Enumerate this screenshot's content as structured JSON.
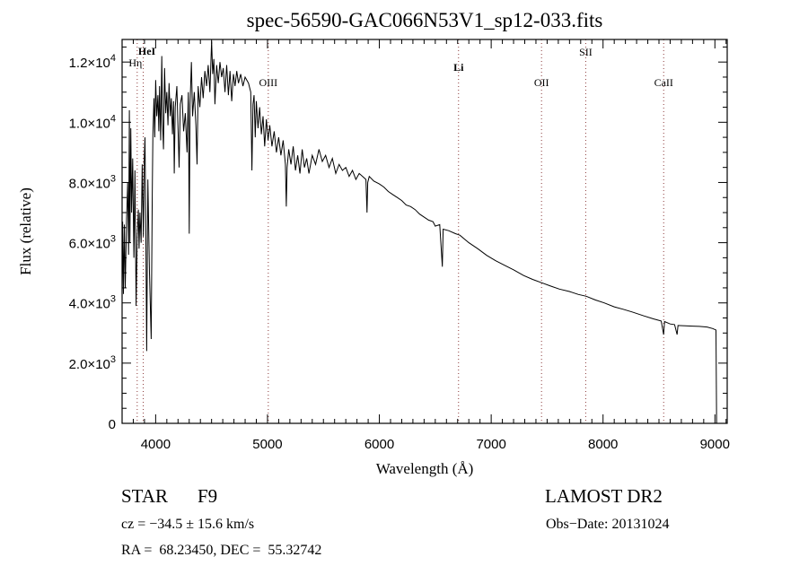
{
  "chart_data": {
    "type": "line",
    "title": "spec-56590-GAC066N53V1_sp12-033.fits",
    "xlabel": "Wavelength (Å)",
    "ylabel": "Flux (relative)",
    "xlim": [
      3700,
      9110
    ],
    "ylim": [
      0,
      12750
    ],
    "grid": false,
    "x_ticks": [
      {
        "value": 4000,
        "label": "4000"
      },
      {
        "value": 5000,
        "label": "5000"
      },
      {
        "value": 6000,
        "label": "6000"
      },
      {
        "value": 7000,
        "label": "7000"
      },
      {
        "value": 8000,
        "label": "8000"
      },
      {
        "value": 9000,
        "label": "9000"
      }
    ],
    "y_ticks": [
      {
        "value": 0,
        "mantissa": "0",
        "exp": ""
      },
      {
        "value": 2000,
        "mantissa": "2.0×10",
        "exp": "3"
      },
      {
        "value": 4000,
        "mantissa": "4.0×10",
        "exp": "3"
      },
      {
        "value": 6000,
        "mantissa": "6.0×10",
        "exp": "3"
      },
      {
        "value": 8000,
        "mantissa": "8.0×10",
        "exp": "3"
      },
      {
        "value": 10000,
        "mantissa": "1.0×10",
        "exp": "4"
      },
      {
        "value": 12000,
        "mantissa": "1.2×10",
        "exp": "4"
      }
    ],
    "line_markers": [
      {
        "name": "Hη",
        "wavelength": 3835
      },
      {
        "name": "HeI",
        "wavelength": 3889
      },
      {
        "name": "OIII",
        "wavelength": 5007
      },
      {
        "name": "Li",
        "wavelength": 6708
      },
      {
        "name": "OII",
        "wavelength": 7450
      },
      {
        "name": "SII",
        "wavelength": 7845
      },
      {
        "name": "CaII",
        "wavelength": 8542
      }
    ],
    "series": [
      {
        "name": "spectrum",
        "color": "#000000",
        "points": [
          [
            3700,
            4200
          ],
          [
            3705,
            6700
          ],
          [
            3712,
            4300
          ],
          [
            3720,
            6600
          ],
          [
            3728,
            4500
          ],
          [
            3740,
            6800
          ],
          [
            3750,
            8000
          ],
          [
            3758,
            5600
          ],
          [
            3765,
            10400
          ],
          [
            3770,
            6000
          ],
          [
            3778,
            9800
          ],
          [
            3785,
            7000
          ],
          [
            3795,
            8800
          ],
          [
            3805,
            5500
          ],
          [
            3815,
            8400
          ],
          [
            3825,
            3900
          ],
          [
            3835,
            6200
          ],
          [
            3845,
            7100
          ],
          [
            3852,
            5800
          ],
          [
            3860,
            7000
          ],
          [
            3870,
            6000
          ],
          [
            3880,
            8600
          ],
          [
            3890,
            6200
          ],
          [
            3898,
            8800
          ],
          [
            3905,
            9500
          ],
          [
            3912,
            6500
          ],
          [
            3920,
            2400
          ],
          [
            3930,
            8100
          ],
          [
            3945,
            5000
          ],
          [
            3960,
            2800
          ],
          [
            3970,
            7600
          ],
          [
            3975,
            9600
          ],
          [
            3985,
            10800
          ],
          [
            3992,
            9500
          ],
          [
            4000,
            11400
          ],
          [
            4010,
            10200
          ],
          [
            4020,
            10900
          ],
          [
            4028,
            9700
          ],
          [
            4035,
            11200
          ],
          [
            4045,
            9400
          ],
          [
            4055,
            12200
          ],
          [
            4062,
            10000
          ],
          [
            4070,
            9100
          ],
          [
            4080,
            11800
          ],
          [
            4090,
            10300
          ],
          [
            4100,
            11000
          ],
          [
            4110,
            9900
          ],
          [
            4120,
            11300
          ],
          [
            4130,
            10200
          ],
          [
            4140,
            10800
          ],
          [
            4150,
            9600
          ],
          [
            4160,
            10700
          ],
          [
            4166,
            8300
          ],
          [
            4175,
            10500
          ],
          [
            4190,
            11200
          ],
          [
            4200,
            9800
          ],
          [
            4210,
            8500
          ],
          [
            4220,
            10600
          ],
          [
            4235,
            10900
          ],
          [
            4250,
            9700
          ],
          [
            4265,
            10300
          ],
          [
            4280,
            9000
          ],
          [
            4292,
            11000
          ],
          [
            4300,
            6300
          ],
          [
            4308,
            10600
          ],
          [
            4320,
            12000
          ],
          [
            4330,
            10200
          ],
          [
            4345,
            11000
          ],
          [
            4360,
            9900
          ],
          [
            4370,
            8600
          ],
          [
            4380,
            11200
          ],
          [
            4395,
            10500
          ],
          [
            4410,
            11500
          ],
          [
            4425,
            10800
          ],
          [
            4440,
            11700
          ],
          [
            4455,
            11200
          ],
          [
            4470,
            11900
          ],
          [
            4485,
            11000
          ],
          [
            4500,
            12700
          ],
          [
            4510,
            11600
          ],
          [
            4520,
            12100
          ],
          [
            4530,
            10600
          ],
          [
            4545,
            11900
          ],
          [
            4560,
            11300
          ],
          [
            4575,
            12000
          ],
          [
            4590,
            11500
          ],
          [
            4605,
            11800
          ],
          [
            4620,
            11000
          ],
          [
            4635,
            11900
          ],
          [
            4650,
            10900
          ],
          [
            4665,
            11700
          ],
          [
            4680,
            10700
          ],
          [
            4695,
            11600
          ],
          [
            4710,
            11200
          ],
          [
            4725,
            11700
          ],
          [
            4740,
            11300
          ],
          [
            4760,
            11600
          ],
          [
            4780,
            11200
          ],
          [
            4800,
            11500
          ],
          [
            4830,
            11300
          ],
          [
            4850,
            11000
          ],
          [
            4861,
            8400
          ],
          [
            4870,
            10600
          ],
          [
            4880,
            10900
          ],
          [
            4890,
            9500
          ],
          [
            4900,
            10700
          ],
          [
            4915,
            9800
          ],
          [
            4930,
            10500
          ],
          [
            4945,
            9600
          ],
          [
            4960,
            10200
          ],
          [
            4975,
            9200
          ],
          [
            4990,
            10100
          ],
          [
            5005,
            9400
          ],
          [
            5020,
            9900
          ],
          [
            5040,
            9200
          ],
          [
            5060,
            9700
          ],
          [
            5080,
            9000
          ],
          [
            5100,
            9500
          ],
          [
            5120,
            8900
          ],
          [
            5140,
            9400
          ],
          [
            5160,
            8600
          ],
          [
            5168,
            7200
          ],
          [
            5175,
            8500
          ],
          [
            5190,
            9100
          ],
          [
            5210,
            8600
          ],
          [
            5230,
            9200
          ],
          [
            5250,
            8400
          ],
          [
            5270,
            8900
          ],
          [
            5290,
            8300
          ],
          [
            5310,
            9100
          ],
          [
            5330,
            8500
          ],
          [
            5350,
            8800
          ],
          [
            5370,
            8300
          ],
          [
            5400,
            8900
          ],
          [
            5430,
            8600
          ],
          [
            5460,
            9100
          ],
          [
            5490,
            8700
          ],
          [
            5520,
            8900
          ],
          [
            5550,
            8500
          ],
          [
            5580,
            8800
          ],
          [
            5610,
            8300
          ],
          [
            5640,
            8600
          ],
          [
            5670,
            8400
          ],
          [
            5700,
            8500
          ],
          [
            5730,
            8200
          ],
          [
            5760,
            8400
          ],
          [
            5790,
            8100
          ],
          [
            5820,
            8300
          ],
          [
            5850,
            8200
          ],
          [
            5880,
            8100
          ],
          [
            5890,
            7000
          ],
          [
            5896,
            8000
          ],
          [
            5910,
            8200
          ],
          [
            5950,
            8050
          ],
          [
            6000,
            7950
          ],
          [
            6040,
            7850
          ],
          [
            6080,
            7700
          ],
          [
            6120,
            7600
          ],
          [
            6160,
            7500
          ],
          [
            6200,
            7400
          ],
          [
            6240,
            7250
          ],
          [
            6280,
            7200
          ],
          [
            6320,
            7100
          ],
          [
            6360,
            6950
          ],
          [
            6400,
            6850
          ],
          [
            6440,
            6750
          ],
          [
            6480,
            6700
          ],
          [
            6500,
            6550
          ],
          [
            6540,
            6600
          ],
          [
            6563,
            5200
          ],
          [
            6570,
            6450
          ],
          [
            6620,
            6400
          ],
          [
            6680,
            6300
          ],
          [
            6720,
            6250
          ],
          [
            6800,
            6000
          ],
          [
            6880,
            5800
          ],
          [
            6960,
            5580
          ],
          [
            7040,
            5400
          ],
          [
            7120,
            5250
          ],
          [
            7200,
            5100
          ],
          [
            7290,
            4910
          ],
          [
            7370,
            4780
          ],
          [
            7450,
            4670
          ],
          [
            7530,
            4560
          ],
          [
            7610,
            4460
          ],
          [
            7700,
            4380
          ],
          [
            7780,
            4280
          ],
          [
            7850,
            4220
          ],
          [
            7930,
            4100
          ],
          [
            8010,
            4000
          ],
          [
            8100,
            3870
          ],
          [
            8180,
            3790
          ],
          [
            8260,
            3700
          ],
          [
            8365,
            3570
          ],
          [
            8450,
            3470
          ],
          [
            8520,
            3400
          ],
          [
            8542,
            2950
          ],
          [
            8550,
            3380
          ],
          [
            8600,
            3300
          ],
          [
            8640,
            3280
          ],
          [
            8662,
            2950
          ],
          [
            8670,
            3250
          ],
          [
            8735,
            3240
          ],
          [
            8800,
            3230
          ],
          [
            8860,
            3220
          ],
          [
            8930,
            3200
          ],
          [
            8980,
            3150
          ],
          [
            9010,
            3100
          ],
          [
            9015,
            0
          ]
        ]
      }
    ]
  },
  "info": {
    "object_class": "STAR",
    "subclass": "F9",
    "survey": "LAMOST DR2",
    "redshift": "cz = −34.5 ± 15.6 km/s",
    "obs_date": "Obs−Date: 20131024",
    "coords": "RA =  68.23450, DEC =  55.32742"
  },
  "colors": {
    "marker_line": "#8b3a3a",
    "axis": "#000000"
  }
}
